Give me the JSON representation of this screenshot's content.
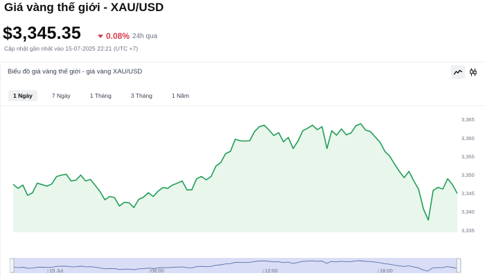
{
  "header": {
    "title": "Giá vàng thế giới - XAU/USD",
    "price": "$3,345.35",
    "change": "0.08%",
    "change_direction": "down",
    "change_color": "#d63b4e",
    "change_period": "24h qua",
    "updated": "Cập nhật gần nhất vào 15-07-2025 22:21 (UTC +7)"
  },
  "panel": {
    "title": "Biểu đồ giá vàng thế giới - giá vàng XAU/USD",
    "tools": [
      {
        "icon": "line-chart-icon",
        "active": true
      },
      {
        "icon": "candlestick-icon",
        "active": false
      }
    ],
    "range_tabs": [
      {
        "label": "1 Ngày",
        "active": true
      },
      {
        "label": "7 Ngày",
        "active": false
      },
      {
        "label": "1 Tháng",
        "active": false
      },
      {
        "label": "3 Tháng",
        "active": false
      },
      {
        "label": "1 Năm",
        "active": false
      }
    ]
  },
  "chart_data": {
    "type": "area",
    "y_ticks": [
      "3,335",
      "3,340",
      "3,345",
      "3,350",
      "3,355",
      "3,360",
      "3,365"
    ],
    "y_tick_values": [
      3335,
      3340,
      3345,
      3350,
      3355,
      3360,
      3365
    ],
    "ylim": [
      3334.5,
      3367
    ],
    "line_color": "#1f9d55",
    "fill_color": "#e8f6ec",
    "values": [
      3347.5,
      3346.4,
      3347.3,
      3344.5,
      3345.2,
      3347.8,
      3347.4,
      3347.0,
      3347.6,
      3349.6,
      3350.0,
      3350.2,
      3348.4,
      3348.6,
      3350.0,
      3348.4,
      3348.8,
      3347.2,
      3345.5,
      3343.3,
      3344.2,
      3343.9,
      3341.6,
      3342.6,
      3342.5,
      3341.2,
      3343.4,
      3344.0,
      3345.2,
      3344.2,
      3345.6,
      3346.6,
      3346.4,
      3347.3,
      3347.8,
      3348.4,
      3346.0,
      3346.0,
      3349.0,
      3349.6,
      3348.7,
      3349.6,
      3352.4,
      3353.4,
      3355.8,
      3356.4,
      3359.7,
      3359.3,
      3359.2,
      3359.3,
      3361.8,
      3363.1,
      3363.5,
      3362.2,
      3360.7,
      3361.5,
      3359.0,
      3360.2,
      3357.2,
      3359.2,
      3362.0,
      3362.7,
      3363.5,
      3362.3,
      3363.1,
      3357.2,
      3362.0,
      3360.8,
      3362.5,
      3360.9,
      3361.4,
      3363.4,
      3363.9,
      3362.2,
      3361.8,
      3360.3,
      3358.9,
      3356.4,
      3355.1,
      3353.0,
      3351.0,
      3349.3,
      3351.0,
      3348.4,
      3346.1,
      3340.8,
      3337.8,
      3345.8,
      3346.7,
      3346.2,
      3349.0,
      3347.4,
      3345.0
    ],
    "navigator": {
      "labels": [
        "15 Jul",
        "06:00",
        "12:00",
        "18:00"
      ]
    }
  }
}
